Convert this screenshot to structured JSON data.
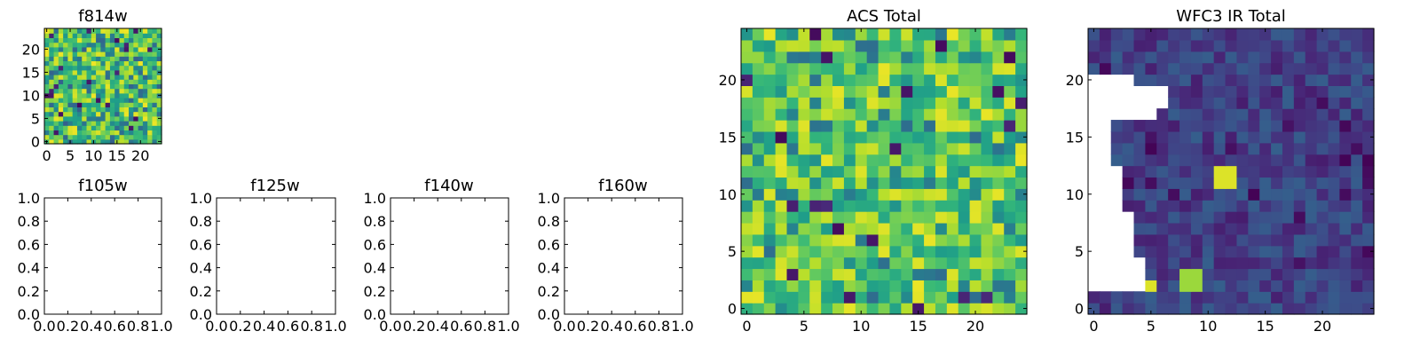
{
  "figure": {
    "background": "#ffffff"
  },
  "chart_data": [
    {
      "type": "heatmap",
      "title": "f814w",
      "xlabel": "",
      "ylabel": "",
      "xlim": [
        -0.5,
        24.5
      ],
      "ylim": [
        -0.5,
        24.5
      ],
      "xticks": [
        0,
        5,
        10,
        15,
        20
      ],
      "yticks": [
        0,
        5,
        10,
        15,
        20
      ],
      "grid": false,
      "colormap": "viridis",
      "pixel_values": "25x25 array, mostly in the 0.4–0.9 range of the colormap (green/yellow), with scattered dark outliers"
    },
    {
      "type": "empty",
      "title": "f105w",
      "xlim": [
        0,
        1
      ],
      "ylim": [
        0,
        1
      ],
      "xticks": [
        "0.0",
        "0.2",
        "0.4",
        "0.6",
        "0.8",
        "1.0"
      ],
      "yticks": [
        "0.0",
        "0.2",
        "0.4",
        "0.6",
        "0.8",
        "1.0"
      ],
      "grid": false
    },
    {
      "type": "empty",
      "title": "f125w",
      "xlim": [
        0,
        1
      ],
      "ylim": [
        0,
        1
      ],
      "xticks": [
        "0.0",
        "0.2",
        "0.4",
        "0.6",
        "0.8",
        "1.0"
      ],
      "yticks": [
        "0.0",
        "0.2",
        "0.4",
        "0.6",
        "0.8",
        "1.0"
      ],
      "grid": false
    },
    {
      "type": "empty",
      "title": "f140w",
      "xlim": [
        0,
        1
      ],
      "ylim": [
        0,
        1
      ],
      "xticks": [
        "0.0",
        "0.2",
        "0.4",
        "0.6",
        "0.8",
        "1.0"
      ],
      "yticks": [
        "0.0",
        "0.2",
        "0.4",
        "0.6",
        "0.8",
        "1.0"
      ],
      "grid": false
    },
    {
      "type": "empty",
      "title": "f160w",
      "xlim": [
        0,
        1
      ],
      "ylim": [
        0,
        1
      ],
      "xticks": [
        "0.0",
        "0.2",
        "0.4",
        "0.6",
        "0.8",
        "1.0"
      ],
      "yticks": [
        "0.0",
        "0.2",
        "0.4",
        "0.6",
        "0.8",
        "1.0"
      ],
      "grid": false
    },
    {
      "type": "heatmap",
      "title": "ACS Total",
      "xlim": [
        -0.5,
        24.5
      ],
      "ylim": [
        -0.5,
        24.5
      ],
      "xticks": [
        0,
        5,
        10,
        15,
        20
      ],
      "yticks": [
        0,
        5,
        10,
        15,
        20
      ],
      "grid": false,
      "colormap": "viridis",
      "pixel_values": "25x25 array, mostly green/yellow (0.5–0.95 of colormap) with a few dark purple outliers"
    },
    {
      "type": "heatmap",
      "title": "WFC3 IR Total",
      "xlim": [
        -0.5,
        24.5
      ],
      "ylim": [
        -0.5,
        24.5
      ],
      "xticks": [
        0,
        5,
        10,
        15,
        20
      ],
      "yticks": [
        0,
        5,
        10,
        15,
        20
      ],
      "grid": false,
      "colormap": "viridis",
      "pixel_values": "25x25 array, mostly dark blue/purple (0.05–0.3 of colormap); blank (NaN) triangular region on left from y≈2 to y≈20; bright yellow hot spots near (11.5,11.5), (4.5,1.5), (8.5,1.5)"
    }
  ]
}
